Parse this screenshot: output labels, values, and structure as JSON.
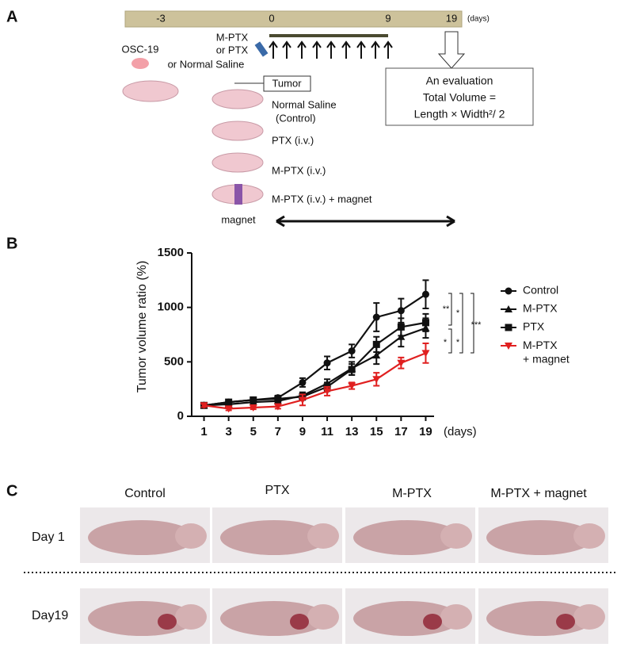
{
  "panel_a": {
    "label": "A",
    "timeline": {
      "ticks": [
        "-3",
        "0",
        "9",
        "19"
      ],
      "unit": "(days)"
    },
    "cell_line": "OSC-19",
    "injection": [
      "M-PTX",
      "or PTX",
      "or Normal Saline"
    ],
    "tumor": "Tumor",
    "groups": [
      "Normal Saline",
      "(Control)",
      "PTX (i.v.)",
      "M-PTX (i.v.)",
      "M-PTX (i.v.) + magnet"
    ],
    "magnet": "magnet",
    "evaluation": [
      "An evaluation",
      "Total Volume =",
      "Length × Width²/ 2"
    ]
  },
  "panel_b": {
    "label": "B"
  },
  "chart_data": {
    "type": "line",
    "y_label": "Tumor volume ratio (%)",
    "x_label": "(days)",
    "x": [
      1,
      3,
      5,
      7,
      9,
      11,
      13,
      15,
      17,
      19
    ],
    "xlim": [
      0,
      20
    ],
    "xticks": [
      1,
      3,
      5,
      7,
      9,
      11,
      13,
      15,
      17,
      19
    ],
    "ylim": [
      0,
      1500
    ],
    "yticks": [
      0,
      500,
      1000,
      1500
    ],
    "series": [
      {
        "name": "Control",
        "color": "#111111",
        "marker": "circle",
        "values": [
          100,
          130,
          150,
          170,
          310,
          490,
          600,
          910,
          970,
          1120
        ],
        "errors": [
          15,
          20,
          20,
          20,
          40,
          60,
          60,
          130,
          110,
          130
        ]
      },
      {
        "name": "M-PTX",
        "color": "#111111",
        "marker": "triangle",
        "values": [
          100,
          110,
          130,
          140,
          190,
          300,
          440,
          560,
          730,
          810
        ],
        "errors": [
          15,
          20,
          20,
          20,
          30,
          40,
          60,
          80,
          90,
          90
        ]
      },
      {
        "name": "PTX",
        "color": "#111111",
        "marker": "square",
        "values": [
          100,
          130,
          150,
          160,
          180,
          270,
          430,
          660,
          820,
          860
        ],
        "errors": [
          15,
          20,
          20,
          20,
          30,
          40,
          50,
          70,
          80,
          80
        ]
      },
      {
        "name": "M-PTX\n+ magnet",
        "color": "#e02020",
        "marker": "triangle-down",
        "values": [
          100,
          70,
          80,
          90,
          150,
          230,
          280,
          340,
          490,
          580
        ],
        "errors": [
          15,
          15,
          15,
          20,
          50,
          40,
          30,
          60,
          50,
          90
        ]
      }
    ],
    "annotations": [
      "**",
      "*",
      "*",
      "*",
      "***"
    ]
  },
  "panel_c": {
    "label": "C",
    "columns": [
      "Control",
      "PTX",
      "M-PTX",
      "M-PTX + magnet"
    ],
    "rows": [
      "Day 1",
      "Day19"
    ]
  }
}
